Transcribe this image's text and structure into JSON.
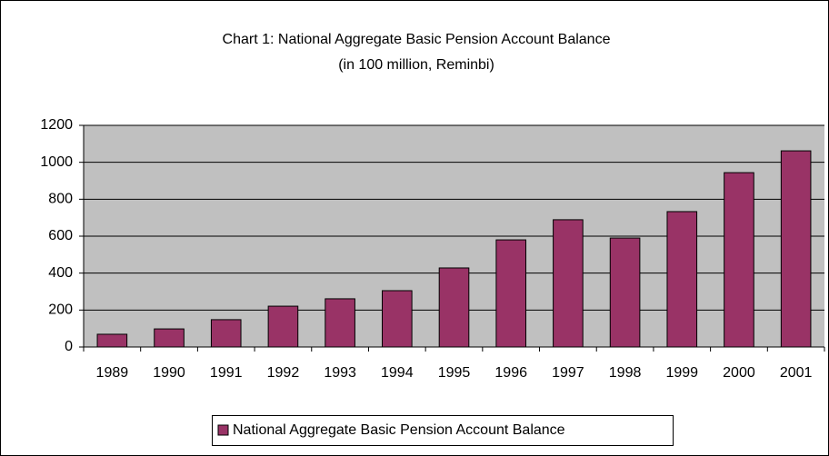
{
  "chart_data": {
    "type": "bar",
    "title": "Chart 1: National Aggregate Basic Pension Account Balance",
    "subtitle": "(in 100 million, Reminbi)",
    "categories": [
      "1989",
      "1990",
      "1991",
      "1992",
      "1993",
      "1994",
      "1995",
      "1996",
      "1997",
      "1998",
      "1999",
      "2000",
      "2001"
    ],
    "series": [
      {
        "name": "National Aggregate Basic Pension Account Balance",
        "color": "#993366",
        "values": [
          69,
          98,
          148,
          221,
          261,
          305,
          428,
          580,
          689,
          590,
          733,
          944,
          1062
        ]
      }
    ],
    "ylim": [
      0,
      1200
    ],
    "yticks": [
      0,
      200,
      400,
      600,
      800,
      1000,
      1200
    ],
    "grid": true,
    "legend": "bottom"
  }
}
